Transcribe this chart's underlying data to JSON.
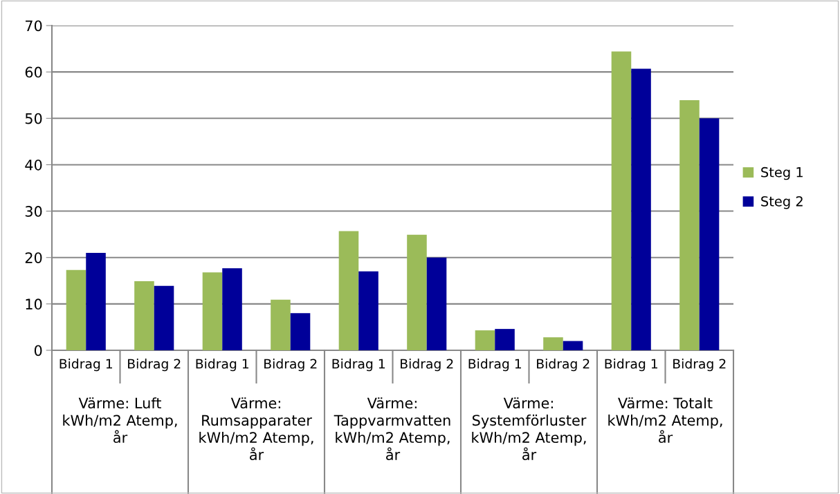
{
  "chart_data": {
    "type": "bar",
    "categories": [
      "Bidrag 1",
      "Bidrag 2",
      "Bidrag 1",
      "Bidrag 2",
      "Bidrag 1",
      "Bidrag 2",
      "Bidrag 1",
      "Bidrag 2",
      "Bidrag 1",
      "Bidrag 2"
    ],
    "series": [
      {
        "name": "Steg 1",
        "color": "#9bbb59",
        "values": [
          17.3,
          14.9,
          16.8,
          10.9,
          25.7,
          24.9,
          4.3,
          2.8,
          64.4,
          53.9
        ]
      },
      {
        "name": "Steg 2",
        "color": "#000099",
        "values": [
          21.0,
          13.9,
          17.7,
          8.0,
          17.0,
          20.0,
          4.6,
          2.0,
          60.7,
          50.0
        ]
      }
    ],
    "annotations": [
      "Värme: Luft\nkWh/m2 Atemp,\når",
      "Värme:\nRumsapparater\nkWh/m2 Atemp,\når",
      "Värme:\nTappvarmvatten\nkWh/m2 Atemp,\når",
      "Värme:\nSystemförluster\nkWh/m2 Atemp,\når",
      "Värme: Totalt\nkWh/m2 Atemp,\når"
    ],
    "ylim": [
      0,
      70
    ],
    "yticks": [
      0,
      10,
      20,
      30,
      40,
      50,
      60,
      70
    ],
    "grid": "y",
    "legend": "right"
  }
}
